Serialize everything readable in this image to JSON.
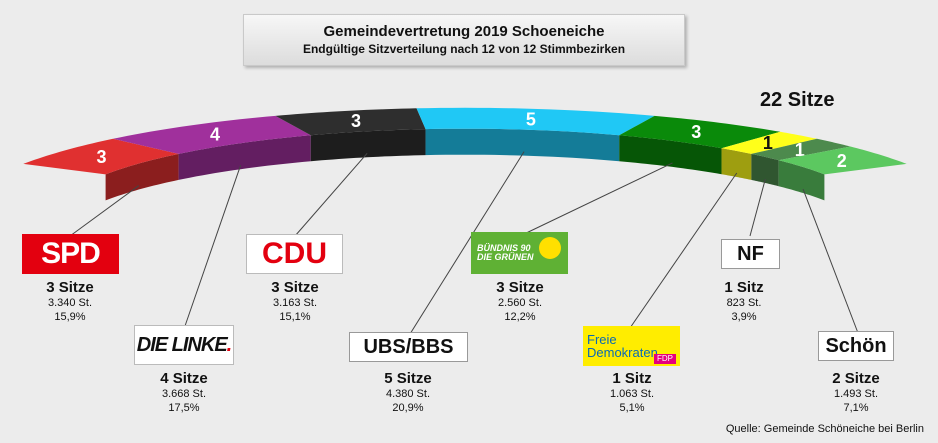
{
  "title": "Gemeindevertretung 2019 Schoeneiche",
  "subtitle": "Endgültige Sitzverteilung nach 12 von 12 Stimmbezirken",
  "total_label": "22 Sitze",
  "source": "Quelle: Gemeinde Schöneiche bei Berlin",
  "logos": {
    "spd": "SPD",
    "linke": "DIE LINKE",
    "cdu": "CDU",
    "ubs": "UBS/BBS",
    "gruene_line1": "BÜNDNIS 90",
    "gruene_line2": "DIE GRÜNEN",
    "fdp_line1": "Freie",
    "fdp_line2": "Demokraten",
    "fdp_tag": "FDP",
    "nf": "NF",
    "schoen": "Schön"
  },
  "chart_data": {
    "type": "semicircle",
    "total_seats": 22,
    "series": [
      {
        "party": "SPD",
        "seats": 3,
        "seats_label": "3 Sitze",
        "votes": "3.340 St.",
        "percent": "15,9%",
        "color": "#e03030"
      },
      {
        "party": "DIE LINKE",
        "seats": 4,
        "seats_label": "4 Sitze",
        "votes": "3.668 St.",
        "percent": "17,5%",
        "color": "#a0309c"
      },
      {
        "party": "CDU",
        "seats": 3,
        "seats_label": "3 Sitze",
        "votes": "3.163 St.",
        "percent": "15,1%",
        "color": "#2e2e2e"
      },
      {
        "party": "UBS/BBS",
        "seats": 5,
        "seats_label": "5 Sitze",
        "votes": "4.380 St.",
        "percent": "20,9%",
        "color": "#20c8f5"
      },
      {
        "party": "Grüne",
        "seats": 3,
        "seats_label": "3 Sitze",
        "votes": "2.560 St.",
        "percent": "12,2%",
        "color": "#0a8a0a"
      },
      {
        "party": "FDP",
        "seats": 1,
        "seats_label": "1 Sitz",
        "votes": "1.063 St.",
        "percent": "5,1%",
        "color": "#ffff1a"
      },
      {
        "party": "NF",
        "seats": 1,
        "seats_label": "1 Sitz",
        "votes": "823 St.",
        "percent": "3,9%",
        "color": "#4d8a4d"
      },
      {
        "party": "Schön",
        "seats": 2,
        "seats_label": "2 Sitze",
        "votes": "1.493 St.",
        "percent": "7,1%",
        "color": "#5cc860"
      }
    ]
  }
}
